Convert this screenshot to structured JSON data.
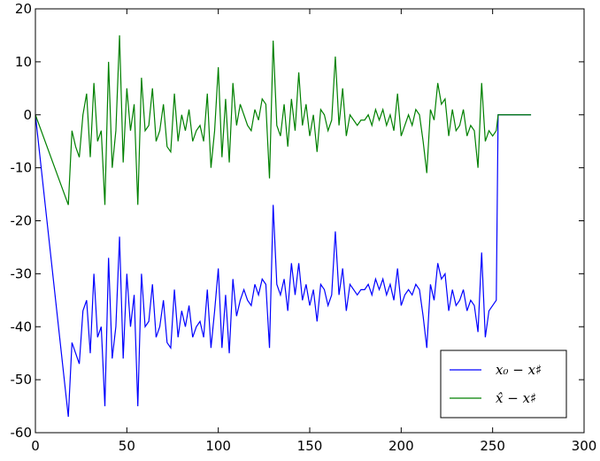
{
  "chart_data": {
    "type": "line",
    "x": [
      0,
      18,
      20,
      22,
      24,
      26,
      28,
      30,
      32,
      34,
      36,
      38,
      40,
      42,
      44,
      46,
      48,
      50,
      52,
      54,
      56,
      58,
      60,
      62,
      64,
      66,
      68,
      70,
      72,
      74,
      76,
      78,
      80,
      82,
      84,
      86,
      88,
      90,
      92,
      94,
      96,
      98,
      100,
      102,
      104,
      106,
      108,
      110,
      112,
      114,
      116,
      118,
      120,
      122,
      124,
      126,
      128,
      130,
      132,
      134,
      136,
      138,
      140,
      142,
      144,
      146,
      148,
      150,
      152,
      154,
      156,
      158,
      160,
      162,
      164,
      166,
      168,
      170,
      172,
      174,
      176,
      178,
      180,
      182,
      184,
      186,
      188,
      190,
      192,
      194,
      196,
      198,
      200,
      202,
      204,
      206,
      208,
      210,
      212,
      214,
      216,
      218,
      220,
      222,
      224,
      226,
      228,
      230,
      232,
      234,
      236,
      238,
      240,
      242,
      244,
      246,
      248,
      250,
      252,
      253,
      271
    ],
    "series": [
      {
        "name": "x₀ − x♯",
        "color": "#0000ff",
        "values": [
          0,
          -57,
          -43,
          -45,
          -47,
          -37,
          -35,
          -45,
          -30,
          -42,
          -40,
          -55,
          -27,
          -46,
          -40,
          -23,
          -46,
          -30,
          -40,
          -34,
          -55,
          -30,
          -40,
          -39,
          -32,
          -42,
          -40,
          -35,
          -43,
          -44,
          -33,
          -42,
          -37,
          -40,
          -36,
          -42,
          -40,
          -39,
          -42,
          -33,
          -44,
          -37,
          -29,
          -44,
          -34,
          -45,
          -31,
          -38,
          -35,
          -33,
          -35,
          -36,
          -32,
          -34,
          -31,
          -32,
          -44,
          -17,
          -32,
          -34,
          -31,
          -37,
          -28,
          -34,
          -28,
          -35,
          -32,
          -36,
          -33,
          -39,
          -32,
          -33,
          -36,
          -34,
          -22,
          -34,
          -29,
          -37,
          -32,
          -33,
          -34,
          -33,
          -33,
          -32,
          -34,
          -31,
          -33,
          -31,
          -34,
          -32,
          -35,
          -29,
          -36,
          -34,
          -33,
          -34,
          -32,
          -33,
          -38,
          -44,
          -32,
          -35,
          -28,
          -31,
          -30,
          -37,
          -33,
          -36,
          -35,
          -33,
          -37,
          -35,
          -36,
          -41,
          -26,
          -42,
          -37,
          -36,
          -35,
          0,
          0
        ]
      },
      {
        "name": "x̂ − x♯",
        "color": "#008000",
        "values": [
          0,
          -17,
          -3,
          -6,
          -8,
          0,
          4,
          -8,
          6,
          -5,
          -3,
          -17,
          10,
          -10,
          -3,
          15,
          -9,
          5,
          -3,
          2,
          -17,
          7,
          -3,
          -2,
          5,
          -5,
          -3,
          2,
          -6,
          -7,
          4,
          -5,
          0,
          -3,
          1,
          -5,
          -3,
          -2,
          -5,
          4,
          -10,
          -3,
          9,
          -8,
          3,
          -9,
          6,
          -2,
          2,
          0,
          -2,
          -3,
          1,
          -1,
          3,
          2,
          -12,
          14,
          -2,
          -4,
          2,
          -6,
          3,
          -3,
          8,
          -2,
          2,
          -4,
          0,
          -7,
          1,
          0,
          -3,
          -1,
          11,
          -2,
          5,
          -4,
          0,
          -1,
          -2,
          -1,
          -1,
          0,
          -2,
          1,
          -1,
          1,
          -2,
          0,
          -3,
          4,
          -4,
          -2,
          0,
          -2,
          1,
          0,
          -5,
          -11,
          1,
          -1,
          6,
          2,
          3,
          -4,
          1,
          -3,
          -2,
          1,
          -4,
          -2,
          -3,
          -10,
          6,
          -5,
          -3,
          -4,
          -3,
          0,
          0
        ]
      }
    ],
    "xlim": [
      0,
      300
    ],
    "xticks": [
      0,
      50,
      100,
      150,
      200,
      250,
      300
    ],
    "ylim": [
      -60,
      20
    ],
    "yticks": [
      -60,
      -50,
      -40,
      -30,
      -20,
      -10,
      0,
      10,
      20
    ],
    "legend": "lower right"
  }
}
